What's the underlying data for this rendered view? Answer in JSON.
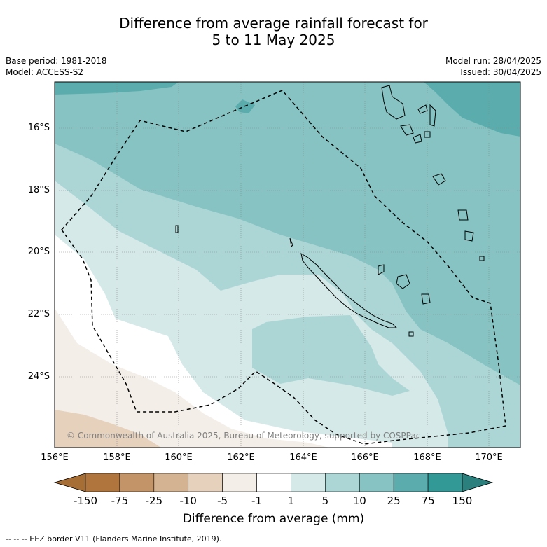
{
  "header": {
    "title_line1": "Difference from average rainfall forecast for",
    "title_line2": "5 to 11 May 2025"
  },
  "meta": {
    "base_period": "Base period: 1981-2018",
    "model": "Model: ACCESS-S2",
    "model_run": "Model run: 28/04/2025",
    "issued": "Issued: 30/04/2025"
  },
  "map": {
    "lat_labels": [
      "16°S",
      "18°S",
      "20°S",
      "22°S",
      "24°S"
    ],
    "lon_labels": [
      "156°E",
      "158°E",
      "160°E",
      "162°E",
      "164°E",
      "166°E",
      "168°E",
      "170°E"
    ],
    "copyright": "© Commonwealth of Australia 2025, Bureau of Meteorology, supported by COSPPac",
    "colors": {
      "land_dark": "#5ba9aa",
      "c25": "#5aacad",
      "c10": "#86c3c2",
      "c5": "#acd6d5",
      "c1": "#d5e9e8",
      "white": "#ffffff",
      "cm1": "#f3eee7",
      "cm5": "#e6d1bd"
    }
  },
  "colorbar": {
    "labels": [
      "-150",
      "-75",
      "-25",
      "-10",
      "-5",
      "-1",
      "1",
      "5",
      "10",
      "25",
      "75",
      "150"
    ],
    "colors": [
      "#a66d34",
      "#b0753c",
      "#c39467",
      "#d4b392",
      "#e6d1bd",
      "#f3eee7",
      "#ffffff",
      "#d5e9e8",
      "#acd6d5",
      "#86c3c2",
      "#5aacad",
      "#339996",
      "#2b7f7c"
    ],
    "title": "Difference from average (mm)"
  },
  "footer": {
    "legend": "--  --  -- EEZ border V11 (Flanders Marine Institute, 2019)."
  }
}
